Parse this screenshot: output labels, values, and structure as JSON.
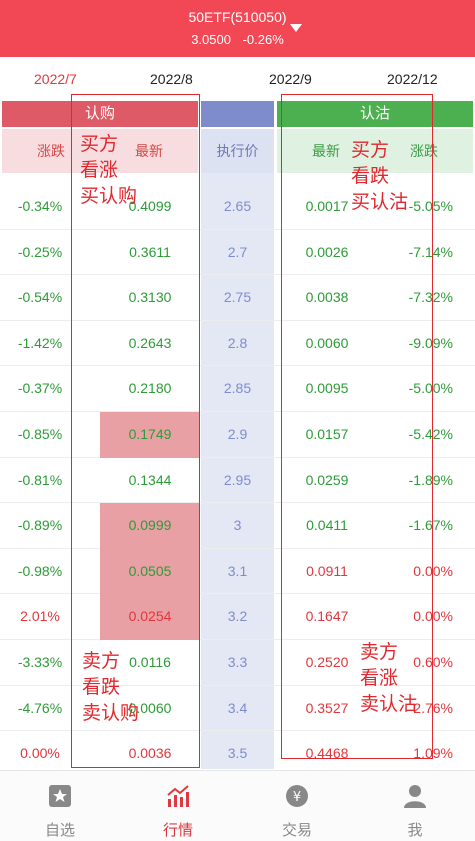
{
  "header": {
    "title": "50ETF(510050)",
    "price": "3.0500",
    "change": "-0.26%"
  },
  "months": [
    {
      "label": "2022/7",
      "active": true
    },
    {
      "label": "2022/8",
      "active": false
    },
    {
      "label": "2022/9",
      "active": false
    },
    {
      "label": "2022/12",
      "active": false
    }
  ],
  "bands": {
    "call": "认购",
    "put": "认沽"
  },
  "columns": {
    "call_change": "涨跌",
    "call_last": "最新",
    "strike": "执行价",
    "put_last": "最新",
    "put_change": "涨跌"
  },
  "rows": [
    {
      "call_change": "-0.34%",
      "call_last": "0.4099",
      "strike": "2.65",
      "put_last": "0.0017",
      "put_change": "-5.05%",
      "cc": "green",
      "cl": "green",
      "pl": "green",
      "pc": "green",
      "hl": false
    },
    {
      "call_change": "-0.25%",
      "call_last": "0.3611",
      "strike": "2.7",
      "put_last": "0.0026",
      "put_change": "-7.14%",
      "cc": "green",
      "cl": "green",
      "pl": "green",
      "pc": "green",
      "hl": false
    },
    {
      "call_change": "-0.54%",
      "call_last": "0.3130",
      "strike": "2.75",
      "put_last": "0.0038",
      "put_change": "-7.32%",
      "cc": "green",
      "cl": "green",
      "pl": "green",
      "pc": "green",
      "hl": false
    },
    {
      "call_change": "-1.42%",
      "call_last": "0.2643",
      "strike": "2.8",
      "put_last": "0.0060",
      "put_change": "-9.09%",
      "cc": "green",
      "cl": "green",
      "pl": "green",
      "pc": "green",
      "hl": false
    },
    {
      "call_change": "-0.37%",
      "call_last": "0.2180",
      "strike": "2.85",
      "put_last": "0.0095",
      "put_change": "-5.00%",
      "cc": "green",
      "cl": "green",
      "pl": "green",
      "pc": "green",
      "hl": false
    },
    {
      "call_change": "-0.85%",
      "call_last": "0.1749",
      "strike": "2.9",
      "put_last": "0.0157",
      "put_change": "-5.42%",
      "cc": "green",
      "cl": "green",
      "pl": "green",
      "pc": "green",
      "hl": true
    },
    {
      "call_change": "-0.81%",
      "call_last": "0.1344",
      "strike": "2.95",
      "put_last": "0.0259",
      "put_change": "-1.89%",
      "cc": "green",
      "cl": "green",
      "pl": "green",
      "pc": "green",
      "hl": false
    },
    {
      "call_change": "-0.89%",
      "call_last": "0.0999",
      "strike": "3",
      "put_last": "0.0411",
      "put_change": "-1.67%",
      "cc": "green",
      "cl": "green",
      "pl": "green",
      "pc": "green",
      "hl": true
    },
    {
      "call_change": "-0.98%",
      "call_last": "0.0505",
      "strike": "3.1",
      "put_last": "0.0911",
      "put_change": "0.00%",
      "cc": "green",
      "cl": "green",
      "pl": "red",
      "pc": "red",
      "hl": true
    },
    {
      "call_change": "2.01%",
      "call_last": "0.0254",
      "strike": "3.2",
      "put_last": "0.1647",
      "put_change": "0.00%",
      "cc": "red",
      "cl": "red",
      "pl": "red",
      "pc": "red",
      "hl": true
    },
    {
      "call_change": "-3.33%",
      "call_last": "0.0116",
      "strike": "3.3",
      "put_last": "0.2520",
      "put_change": "0.60%",
      "cc": "green",
      "cl": "green",
      "pl": "red",
      "pc": "red",
      "hl": false
    },
    {
      "call_change": "-4.76%",
      "call_last": "0.0060",
      "strike": "3.4",
      "put_last": "0.3527",
      "put_change": "2.76%",
      "cc": "green",
      "cl": "green",
      "pl": "red",
      "pc": "red",
      "hl": false
    },
    {
      "call_change": "0.00%",
      "call_last": "0.0036",
      "strike": "3.5",
      "put_last": "0.4468",
      "put_change": "1.09%",
      "cc": "red",
      "cl": "red",
      "pl": "red",
      "pc": "red",
      "hl": false
    }
  ],
  "annotations": {
    "call_buy": [
      "买方",
      "看涨",
      "买认购"
    ],
    "call_sell": [
      "卖方",
      "看跌",
      "卖认购"
    ],
    "put_buy": [
      "买方",
      "看跌",
      "买认沽"
    ],
    "put_sell": [
      "卖方",
      "看涨",
      "卖认沽"
    ]
  },
  "tabs": [
    {
      "label": "自选",
      "icon": "star-icon",
      "active": false
    },
    {
      "label": "行情",
      "icon": "chart-icon",
      "active": true
    },
    {
      "label": "交易",
      "icon": "yuan-icon",
      "active": false
    },
    {
      "label": "我",
      "icon": "user-icon",
      "active": false
    }
  ],
  "colors": {
    "accent": "#f24755",
    "up": "#e3363b",
    "down": "#2d9b37",
    "call_band": "#dd5a66",
    "strike_band": "#7f8ccc",
    "put_band": "#4caf50"
  }
}
